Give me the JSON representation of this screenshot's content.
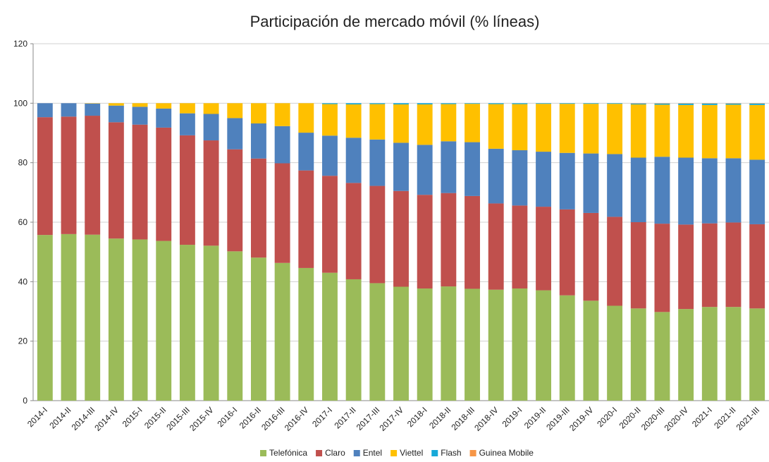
{
  "chart_data": {
    "type": "stacked_bar",
    "title": "Participación de mercado móvil (% líneas)",
    "categories": [
      "2014-I",
      "2014-II",
      "2014-III",
      "2014-IV",
      "2015-I",
      "2015-II",
      "2015-III",
      "2015-IV",
      "2016-I",
      "2016-II",
      "2016-III",
      "2016-IV",
      "2017-I",
      "2017-II",
      "2017-III",
      "2017-IV",
      "2018-I",
      "2018-II",
      "2018-III",
      "2018-IV",
      "2019-I",
      "2019-II",
      "2019-III",
      "2019-IV",
      "2020-I",
      "2020-II",
      "2020-III",
      "2020-IV",
      "2021-I",
      "2021-II",
      "2021-III"
    ],
    "series": [
      {
        "name": "Telefónica",
        "color": "#9bbb59",
        "values": [
          55.7,
          56,
          55.8,
          54.5,
          54.2,
          53.7,
          52.4,
          52.1,
          50.2,
          48.1,
          46.3,
          44.6,
          43,
          40.8,
          39.5,
          38.3,
          37.7,
          38.4,
          37.6,
          37.3,
          37.7,
          37.1,
          35.4,
          33.6,
          31.9,
          31,
          29.8,
          30.8,
          31.5,
          31.5,
          31
        ]
      },
      {
        "name": "Claro",
        "color": "#c0504d",
        "values": [
          39.6,
          39.5,
          40.0,
          39.1,
          38.6,
          38.1,
          36.8,
          35.4,
          34.3,
          33.3,
          33.5,
          32.8,
          32.6,
          32.4,
          32.7,
          32.2,
          31.5,
          31.4,
          31.2,
          29.0,
          27.9,
          28.1,
          28.9,
          29.5,
          29.9,
          29.0,
          29.7,
          28.4,
          28.1,
          28.4,
          28.3
        ]
      },
      {
        "name": "Entel",
        "color": "#4f81bd",
        "values": [
          4.7,
          4.5,
          4.1,
          5.6,
          6.0,
          6.4,
          7.4,
          8.9,
          10.5,
          11.8,
          12.5,
          12.7,
          13.5,
          15.2,
          15.6,
          16.2,
          16.8,
          17.4,
          18.1,
          18.4,
          18.6,
          18.5,
          19.0,
          20.0,
          21.1,
          21.7,
          22.5,
          22.5,
          21.9,
          21.6,
          21.7
        ]
      },
      {
        "name": "Viettel",
        "color": "#ffc000",
        "values": [
          0,
          0,
          0.1,
          0.8,
          1.2,
          1.8,
          3.4,
          3.6,
          5.0,
          6.8,
          7.7,
          9.9,
          10.6,
          11.2,
          11.9,
          12.9,
          13.6,
          12.5,
          12.9,
          15.0,
          15.5,
          16.1,
          16.5,
          16.7,
          16.9,
          17.9,
          17.5,
          17.7,
          17.9,
          18.0,
          18.4
        ]
      },
      {
        "name": "Flash",
        "color": "#17a9d8",
        "values": [
          0,
          0,
          0,
          0,
          0,
          0,
          0,
          0,
          0,
          0,
          0,
          0,
          0.3,
          0.4,
          0.3,
          0.4,
          0.4,
          0.3,
          0.2,
          0.3,
          0.3,
          0.2,
          0.2,
          0.2,
          0.2,
          0.3,
          0.4,
          0.5,
          0.5,
          0.4,
          0.5
        ]
      },
      {
        "name": "Guinea Mobile",
        "color": "#f79646",
        "values": [
          0,
          0,
          0,
          0,
          0,
          0,
          0,
          0,
          0,
          0,
          0,
          0,
          0,
          0,
          0,
          0,
          0,
          0,
          0,
          0,
          0,
          0,
          0,
          0,
          0,
          0.1,
          0.1,
          0.1,
          0.1,
          0.1,
          0.1
        ]
      }
    ],
    "ylim": [
      0,
      120
    ],
    "yticks": [
      0,
      20,
      40,
      60,
      80,
      100,
      120
    ],
    "grid": true,
    "legend": "bottom"
  }
}
